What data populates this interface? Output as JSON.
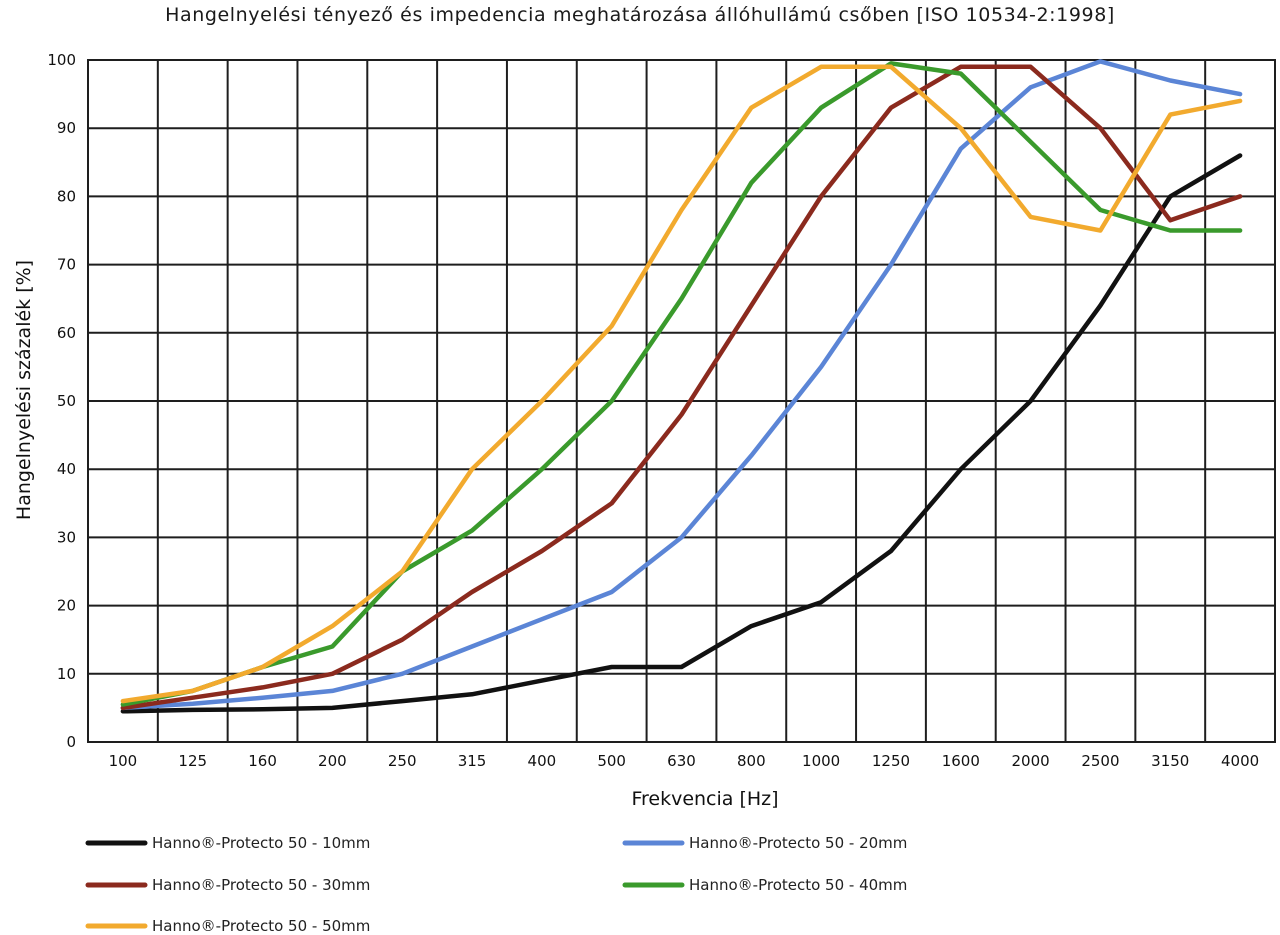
{
  "chart_data": {
    "type": "line",
    "title": "Hangelnyelési tényező és impedencia meghatározása állóhullámú csőben [ISO 10534-2:1998]",
    "xlabel": "Frekvencia [Hz]",
    "ylabel": "Hangelnyelési százalék [%]",
    "categories": [
      "100",
      "125",
      "160",
      "200",
      "250",
      "315",
      "400",
      "500",
      "630",
      "800",
      "1000",
      "1250",
      "1600",
      "2000",
      "2500",
      "3150",
      "4000"
    ],
    "ylim": [
      0,
      100
    ],
    "yticks": [
      0,
      10,
      20,
      30,
      40,
      50,
      60,
      70,
      80,
      90,
      100
    ],
    "grid": true,
    "legend_placement": "bottom",
    "series": [
      {
        "name": "Hanno®-Protecto 50 - 10mm",
        "color": "#111111",
        "values": [
          4.5,
          4.7,
          4.8,
          5.0,
          6.0,
          7.0,
          9.0,
          11.0,
          11.0,
          17.0,
          20.5,
          28.0,
          40.0,
          50.0,
          64.0,
          80.0,
          86.0
        ]
      },
      {
        "name": "Hanno®-Protecto 50 - 20mm",
        "color": "#5b85d6",
        "values": [
          5.0,
          5.6,
          6.5,
          7.5,
          10.0,
          14.0,
          18.0,
          22.0,
          30.0,
          42.0,
          55.0,
          70.0,
          87.0,
          96.0,
          99.8,
          97.0,
          95.0
        ]
      },
      {
        "name": "Hanno®-Protecto 50 - 30mm",
        "color": "#8b2a1e",
        "values": [
          5.0,
          6.5,
          8.0,
          10.0,
          15.0,
          22.0,
          28.0,
          35.0,
          48.0,
          64.0,
          80.0,
          93.0,
          99.0,
          99.0,
          90.0,
          76.5,
          80.0
        ]
      },
      {
        "name": "Hanno®-Protecto 50 - 40mm",
        "color": "#3a9a2c",
        "values": [
          5.5,
          7.5,
          11.0,
          14.0,
          25.0,
          31.0,
          40.0,
          50.0,
          65.0,
          82.0,
          93.0,
          99.5,
          98.0,
          88.0,
          78.0,
          75.0,
          75.0
        ]
      },
      {
        "name": "Hanno®-Protecto 50 - 50mm",
        "color": "#f2aa2e",
        "values": [
          6.0,
          7.5,
          11.0,
          17.0,
          25.0,
          40.0,
          50.0,
          61.0,
          78.0,
          93.0,
          99.0,
          99.0,
          90.0,
          77.0,
          75.0,
          92.0,
          94.0
        ]
      }
    ]
  }
}
